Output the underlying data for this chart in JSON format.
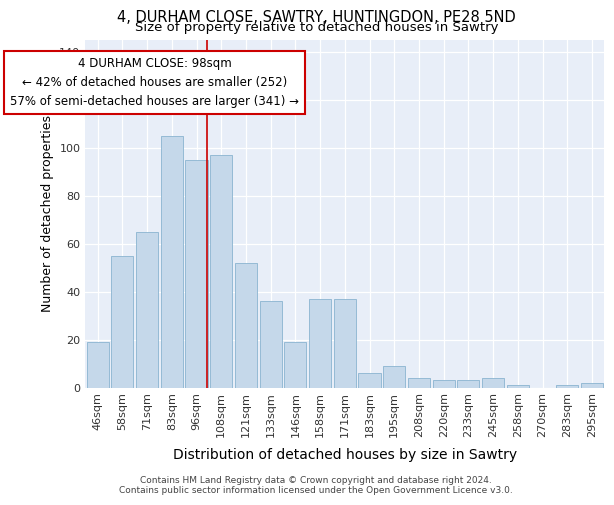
{
  "title1": "4, DURHAM CLOSE, SAWTRY, HUNTINGDON, PE28 5ND",
  "title2": "Size of property relative to detached houses in Sawtry",
  "xlabel": "Distribution of detached houses by size in Sawtry",
  "ylabel": "Number of detached properties",
  "categories": [
    "46sqm",
    "58sqm",
    "71sqm",
    "83sqm",
    "96sqm",
    "108sqm",
    "121sqm",
    "133sqm",
    "146sqm",
    "158sqm",
    "171sqm",
    "183sqm",
    "195sqm",
    "208sqm",
    "220sqm",
    "233sqm",
    "245sqm",
    "258sqm",
    "270sqm",
    "283sqm",
    "295sqm"
  ],
  "values": [
    19,
    55,
    65,
    105,
    95,
    97,
    52,
    36,
    19,
    37,
    37,
    6,
    9,
    4,
    3,
    3,
    4,
    1,
    0,
    1,
    2
  ],
  "bar_color": "#c5d8ea",
  "bar_edge_color": "#8ab4d0",
  "background_color": "#e8eef8",
  "grid_color": "#ffffff",
  "red_line_x": 4.425,
  "annotation_text": "4 DURHAM CLOSE: 98sqm\n← 42% of detached houses are smaller (252)\n57% of semi-detached houses are larger (341) →",
  "annotation_box_facecolor": "#ffffff",
  "annotation_box_edgecolor": "#cc0000",
  "ylim": [
    0,
    145
  ],
  "yticks": [
    0,
    20,
    40,
    60,
    80,
    100,
    120,
    140
  ],
  "footer_text": "Contains HM Land Registry data © Crown copyright and database right 2024.\nContains public sector information licensed under the Open Government Licence v3.0.",
  "title1_fontsize": 10.5,
  "title2_fontsize": 9.5,
  "xlabel_fontsize": 10,
  "ylabel_fontsize": 9,
  "tick_fontsize": 8,
  "annotation_fontsize": 8.5,
  "footer_fontsize": 6.5
}
